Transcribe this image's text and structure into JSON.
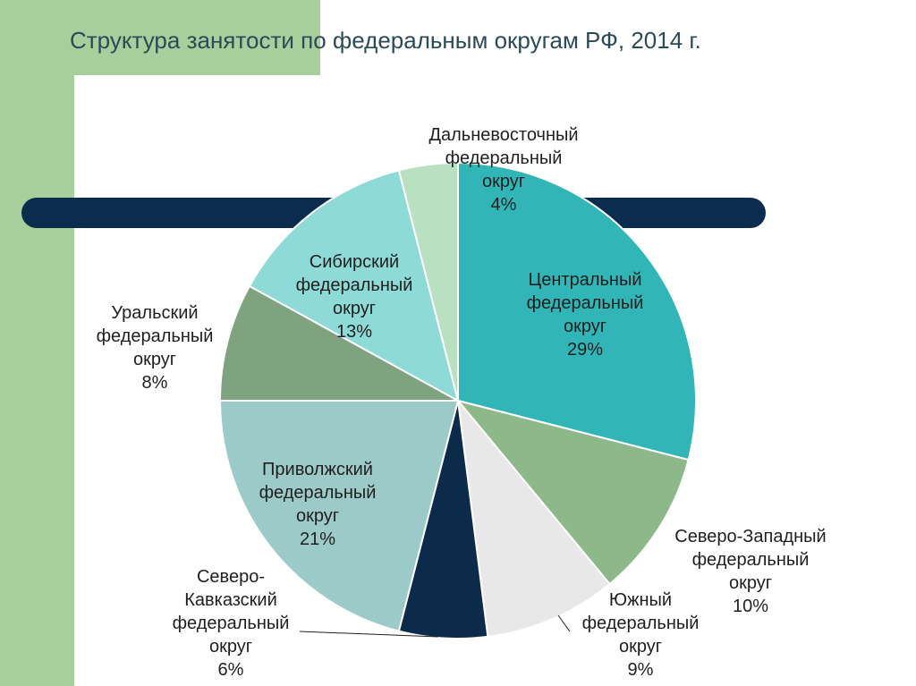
{
  "slide": {
    "title": "Структура занятости  по федеральным округам РФ, 2014 г.",
    "colors": {
      "side_panel": "#a6cf9c",
      "band": "#0a2d4d",
      "text": "#1f1f1f",
      "title": "#2b4a58"
    }
  },
  "chart_data": {
    "type": "pie",
    "title": "Структура занятости  по федеральным округам РФ, 2014 г.",
    "unit": "%",
    "slices": [
      {
        "label": "Центральный\nфедеральный\nокруг",
        "value": 29,
        "value_label": "29%",
        "color": "#32b5b7"
      },
      {
        "label": "Северо-Западный\nфедеральный\nокруг",
        "value": 10,
        "value_label": "10%",
        "color": "#8db88a"
      },
      {
        "label": "Южный\nфедеральный\nокруг",
        "value": 9,
        "value_label": "9%",
        "color": "#e8e8e8"
      },
      {
        "label": "Северо-\nКавказский\nфедеральный\nокруг",
        "value": 6,
        "value_label": "6%",
        "color": "#0c2b4b"
      },
      {
        "label": "Приволжский\nфедеральный\nокруг",
        "value": 21,
        "value_label": "21%",
        "color": "#9ccac9"
      },
      {
        "label": "Уральский\nфедеральный\nокруг",
        "value": 8,
        "value_label": "8%",
        "color": "#7fa37e"
      },
      {
        "label": "Сибирский\nфедеральный\nокруг",
        "value": 13,
        "value_label": "13%",
        "color": "#8edad7"
      },
      {
        "label": "Дальневосточный\nфедеральный\nокруг",
        "value": 4,
        "value_label": "4%",
        "color": "#b9e0c1"
      }
    ]
  }
}
